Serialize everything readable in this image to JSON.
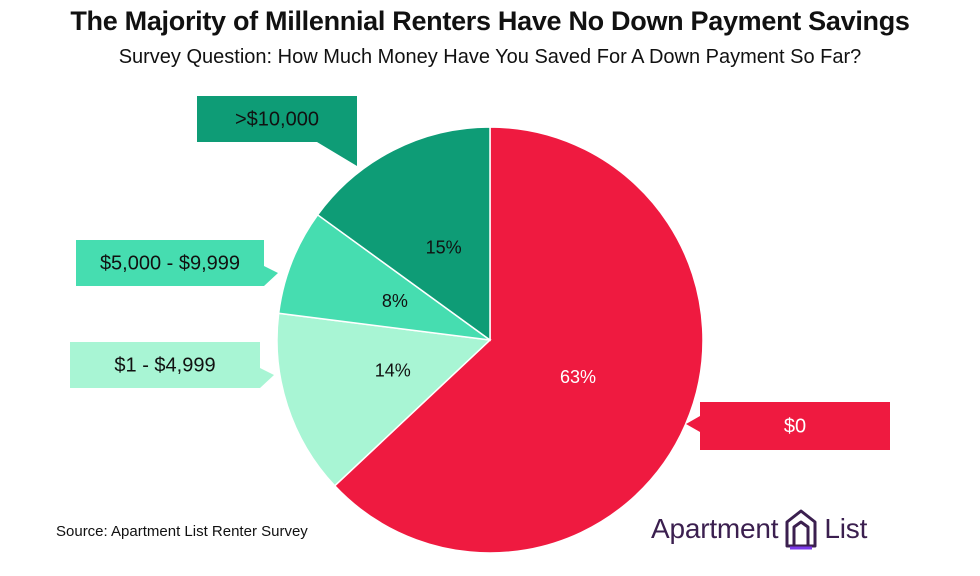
{
  "chart_data": {
    "type": "pie",
    "title": "The Majority of Millennial Renters Have No Down Payment Savings",
    "subtitle": "Survey Question: How Much Money Have You Saved For A Down Payment So Far?",
    "slices": [
      {
        "label": "$0",
        "value": 63,
        "value_label": "63%",
        "color": "#ef1a40",
        "text_color": "#ffffff"
      },
      {
        "label": "$1 - $4,999",
        "value": 14,
        "value_label": "14%",
        "color": "#a8f5d4",
        "text_color": "#111111"
      },
      {
        "label": "$5,000 - $9,999",
        "value": 8,
        "value_label": "8%",
        "color": "#46ddb0",
        "text_color": "#111111"
      },
      {
        "label": ">$10,000",
        "value": 15,
        "value_label": "15%",
        "color": "#0e9c76",
        "text_color": "#111111"
      }
    ]
  },
  "source": "Source: Apartment List Renter Survey",
  "logo": {
    "left_text": "Apartment",
    "right_text": "List",
    "icon": "apartment-list-logo-icon",
    "color": "#3b1f4f"
  }
}
